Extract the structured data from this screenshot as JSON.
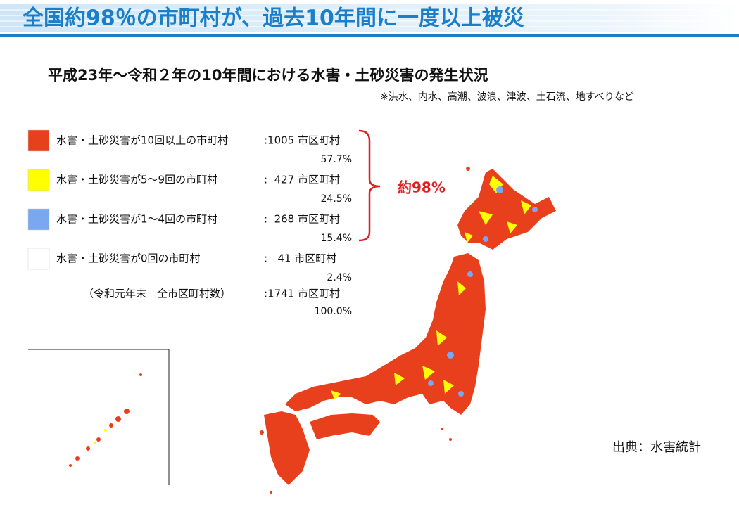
{
  "header": {
    "title": "全国約98％の市町村が、過去10年間に一度以上被災"
  },
  "subtitle": "平成23年～令和２年の10年間における水害・土砂災害の発生状況",
  "note": "※洪水、内水、高潮、波浪、津波、土石流、地すべりなど",
  "legend": {
    "items": [
      {
        "label": "水害・土砂災害が10回以上の市町村",
        "count": ":1005 市区町村",
        "percent": "57.7%",
        "color": "#e8401c"
      },
      {
        "label": "水害・土砂災害が5～9回の市町村",
        "count": ":  427 市区町村",
        "percent": "24.5%",
        "color": "#ffff00"
      },
      {
        "label": "水害・土砂災害が1～4回の市町村",
        "count": ":  268 市区町村",
        "percent": "15.4%",
        "color": "#7aa7f0"
      },
      {
        "label": "水害・土砂災害が0回の市町村",
        "count": ":   41 市区町村",
        "percent": "2.4%",
        "color": "#ffffff"
      }
    ],
    "total": {
      "label": "（令和元年末　全市区町村数）",
      "count": ":1741 市区町村",
      "percent": "100.0%"
    },
    "bracket_label": "約98%"
  },
  "source": "出典：水害統計"
}
